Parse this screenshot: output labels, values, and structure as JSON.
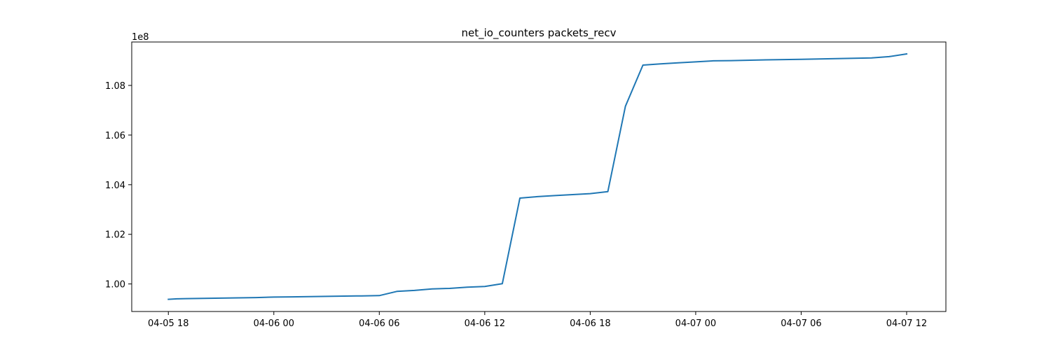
{
  "chart_data": {
    "type": "line",
    "title": "net_io_counters packets_recv",
    "xlabel": "",
    "ylabel": "",
    "y_offset_label": "1e8",
    "x_ticks": [
      "04-05 18",
      "04-06 00",
      "04-06 06",
      "04-06 12",
      "04-06 18",
      "04-07 00",
      "04-07 06",
      "04-07 12"
    ],
    "y_ticks": [
      "1.00",
      "1.02",
      "1.04",
      "1.06",
      "1.08"
    ],
    "xlim": [
      "2024-04-05 15:55",
      "2024-04-07 14:14"
    ],
    "ylim": [
      0.9889,
      1.0975
    ],
    "grid": false,
    "colors": {
      "line": "#1f77b4",
      "axes": "#000000",
      "background": "#ffffff"
    },
    "series": [
      {
        "values_unit": "1e8",
        "x": [
          "2024-04-05 18:00",
          "2024-04-05 18:30",
          "2024-04-05 19:00",
          "2024-04-05 20:00",
          "2024-04-05 21:00",
          "2024-04-05 22:00",
          "2024-04-05 23:00",
          "2024-04-06 00:00",
          "2024-04-06 01:00",
          "2024-04-06 02:00",
          "2024-04-06 03:00",
          "2024-04-06 04:00",
          "2024-04-06 05:00",
          "2024-04-06 06:00",
          "2024-04-06 07:00",
          "2024-04-06 08:00",
          "2024-04-06 09:00",
          "2024-04-06 10:00",
          "2024-04-06 11:00",
          "2024-04-06 12:00",
          "2024-04-06 13:00",
          "2024-04-06 14:00",
          "2024-04-06 15:00",
          "2024-04-06 16:00",
          "2024-04-06 17:00",
          "2024-04-06 18:00",
          "2024-04-06 19:00",
          "2024-04-06 20:00",
          "2024-04-06 21:00",
          "2024-04-06 22:00",
          "2024-04-06 23:00",
          "2024-04-07 00:00",
          "2024-04-07 01:00",
          "2024-04-07 02:00",
          "2024-04-07 04:00",
          "2024-04-07 06:00",
          "2024-04-07 08:00",
          "2024-04-07 10:00",
          "2024-04-07 11:00",
          "2024-04-07 12:00"
        ],
        "y": [
          0.9938,
          0.994,
          0.9941,
          0.9942,
          0.9943,
          0.9944,
          0.9945,
          0.9947,
          0.9948,
          0.9949,
          0.995,
          0.9951,
          0.9952,
          0.9953,
          0.997,
          0.9974,
          0.998,
          0.9982,
          0.9987,
          0.999,
          1.0001,
          1.0346,
          1.0352,
          1.0356,
          1.036,
          1.0364,
          1.0372,
          1.0716,
          1.0882,
          1.0887,
          1.0891,
          1.0895,
          1.0899,
          1.09,
          1.0903,
          1.0905,
          1.0908,
          1.0911,
          1.0916,
          1.0927
        ]
      }
    ]
  }
}
